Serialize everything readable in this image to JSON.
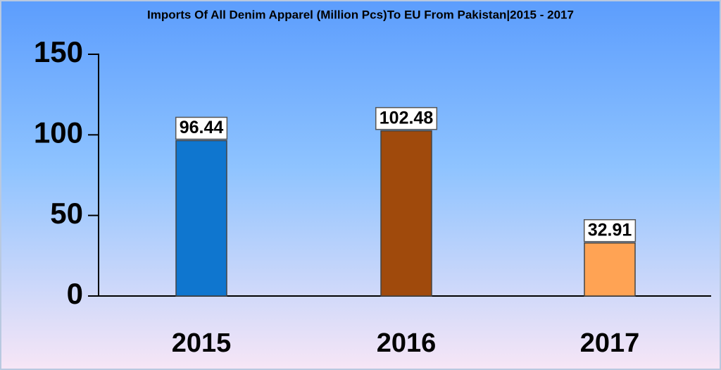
{
  "chart_data": {
    "type": "bar",
    "title": "Imports Of All Denim Apparel (Million Pcs)To EU From Pakistan|2015 - 2017",
    "categories": [
      "2015",
      "2016",
      "2017"
    ],
    "values": [
      96.44,
      102.48,
      32.91
    ],
    "colors": [
      "#0f76cf",
      "#a04a0c",
      "#ffa354"
    ],
    "ylim": [
      0,
      150
    ],
    "yticks": [
      0,
      50,
      100,
      150
    ],
    "grid": false,
    "legend": false
  }
}
